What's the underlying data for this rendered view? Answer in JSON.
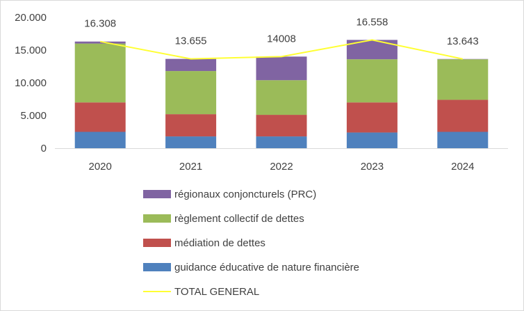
{
  "chart_data": {
    "type": "bar",
    "stacked": true,
    "categories": [
      "2020",
      "2021",
      "2022",
      "2023",
      "2024"
    ],
    "ylim": [
      0,
      20000
    ],
    "yticks": [
      {
        "value": 0,
        "label": "0"
      },
      {
        "value": 5000,
        "label": "5.000"
      },
      {
        "value": 10000,
        "label": "10.000"
      },
      {
        "value": 15000,
        "label": "15.000"
      },
      {
        "value": 20000,
        "label": "20.000"
      }
    ],
    "series": [
      {
        "name": "guidance éducative de nature financière",
        "color": "#4f81bd",
        "values": [
          2500,
          1800,
          1800,
          2400,
          2500
        ]
      },
      {
        "name": "médiation de dettes",
        "color": "#c0504d",
        "values": [
          4500,
          3400,
          3300,
          4600,
          4900
        ]
      },
      {
        "name": "règlement collectif de dettes",
        "color": "#9bbb59",
        "values": [
          9000,
          6600,
          5300,
          6600,
          6200
        ]
      },
      {
        "name": "régionaux conjoncturels (PRC)",
        "color": "#8064a2",
        "values": [
          308,
          1855,
          3608,
          2958,
          43
        ]
      }
    ],
    "total": {
      "name": "TOTAL GENERAL",
      "color": "#ffff33",
      "values": [
        16308,
        13655,
        14008,
        16558,
        13643
      ],
      "labels": [
        "16.308",
        "13.655",
        "14008",
        "16.558",
        "13.643"
      ]
    },
    "legend_order": [
      "régionaux conjoncturels (PRC)",
      "règlement collectif de dettes",
      "médiation de dettes",
      "guidance éducative de nature financière",
      "TOTAL GENERAL"
    ],
    "legend_position": "bottom",
    "title": "",
    "xlabel": "",
    "ylabel": "",
    "grid": false
  }
}
